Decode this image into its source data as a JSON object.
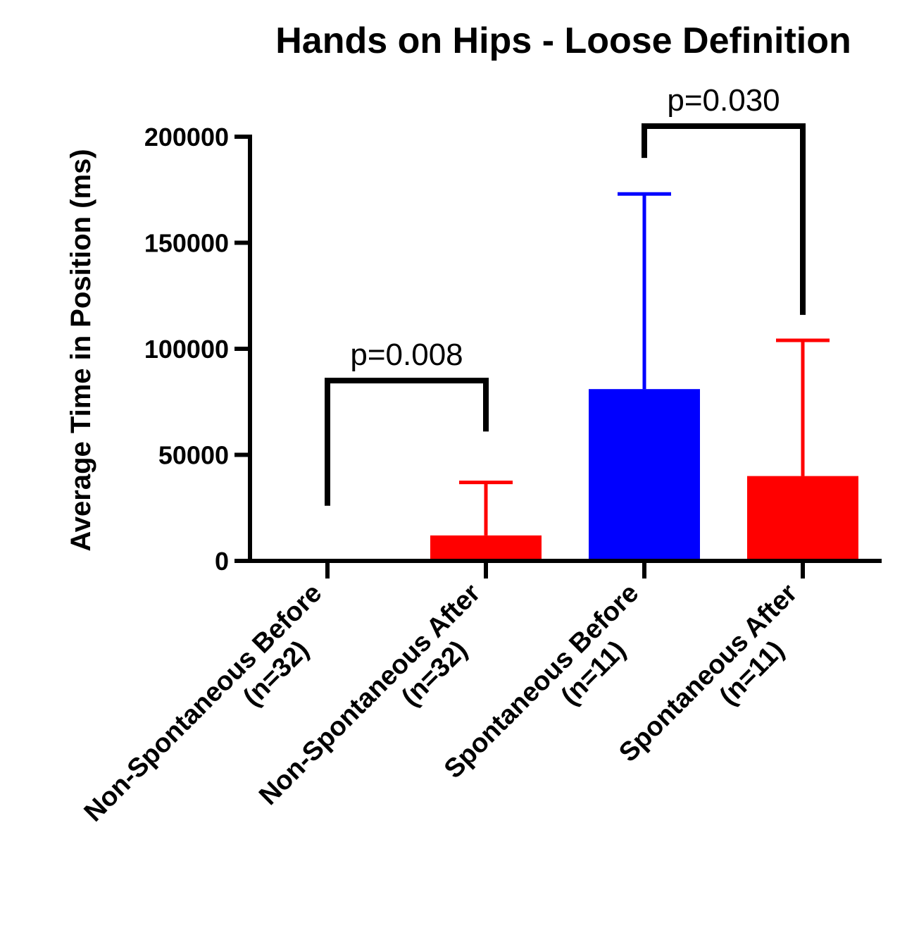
{
  "chart_data": {
    "type": "bar",
    "title": "Hands on Hips - Loose Definition",
    "xlabel": "",
    "ylabel": "Average Time in Position (ms)",
    "ylim": [
      0,
      200000
    ],
    "yticks": [
      "0",
      "50000",
      "100000",
      "150000",
      "200000"
    ],
    "categories": [
      [
        "Non-Spontaneous Before",
        "(n=32)"
      ],
      [
        "Non-Spontaneous After",
        "(n=32)"
      ],
      [
        "Spontaneous Before",
        "(n=11)"
      ],
      [
        "Spontaneous After",
        "(n=11)"
      ]
    ],
    "values": [
      0,
      12000,
      81000,
      40000
    ],
    "error_upper": [
      0,
      37000,
      173000,
      104000
    ],
    "colors": [
      "#ff0000",
      "#ff0000",
      "#0000ff",
      "#ff0000"
    ],
    "grid": false,
    "comparisons": [
      {
        "from": 0,
        "to": 1,
        "label": "p=0.008",
        "left_end": 26000,
        "right_end": 61000,
        "top": 85000
      },
      {
        "from": 2,
        "to": 3,
        "label": "p=0.030",
        "left_end": 190000,
        "right_end": 116000,
        "top": 205000
      }
    ]
  }
}
